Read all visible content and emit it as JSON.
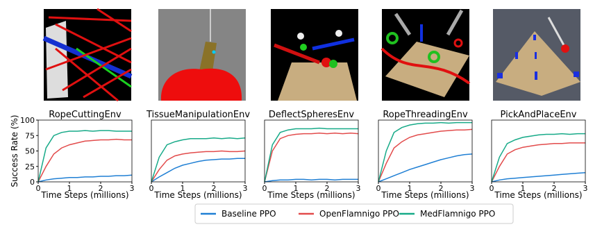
{
  "chart_data": [
    {
      "type": "line",
      "title": "RopeCuttingEnv",
      "xlabel": "Time Steps (millions)",
      "ylabel": "Success Rate (%)",
      "x": [
        0,
        0.25,
        0.5,
        0.75,
        1,
        1.25,
        1.5,
        1.75,
        2,
        2.25,
        2.5,
        2.75,
        3
      ],
      "xlim": [
        0,
        3
      ],
      "xticks": [
        0,
        1,
        2,
        3
      ],
      "ylim": [
        0,
        100
      ],
      "yticks": [
        0,
        25,
        50,
        75,
        100
      ],
      "series": [
        {
          "name": "Baseline PPO",
          "color": "#1f7fd4",
          "values": [
            0,
            3,
            5,
            6,
            7,
            7,
            8,
            8,
            9,
            9,
            10,
            10,
            11
          ]
        },
        {
          "name": "OpenFlamnigo PPO",
          "color": "#e24b4b",
          "values": [
            0,
            25,
            45,
            55,
            60,
            63,
            66,
            67,
            68,
            68,
            69,
            68,
            68
          ]
        },
        {
          "name": "MedFlamnigo PPO",
          "color": "#17aa88",
          "values": [
            0,
            55,
            75,
            80,
            82,
            82,
            83,
            82,
            83,
            83,
            82,
            82,
            82
          ]
        }
      ]
    },
    {
      "type": "line",
      "title": "TissueManipulationEnv",
      "xlabel": "Time Steps (millions)",
      "x": [
        0,
        0.25,
        0.5,
        0.75,
        1,
        1.25,
        1.5,
        1.75,
        2,
        2.25,
        2.5,
        2.75,
        3
      ],
      "xlim": [
        0,
        3
      ],
      "xticks": [
        0,
        1,
        2,
        3
      ],
      "ylim": [
        0,
        100
      ],
      "series": [
        {
          "name": "Baseline PPO",
          "color": "#1f7fd4",
          "values": [
            0,
            8,
            15,
            22,
            27,
            30,
            33,
            35,
            36,
            37,
            37,
            38,
            38
          ]
        },
        {
          "name": "OpenFlamnigo PPO",
          "color": "#e24b4b",
          "values": [
            0,
            20,
            35,
            42,
            45,
            47,
            48,
            49,
            49,
            50,
            49,
            49,
            50
          ]
        },
        {
          "name": "MedFlamnigo PPO",
          "color": "#17aa88",
          "values": [
            0,
            40,
            60,
            65,
            68,
            70,
            70,
            70,
            71,
            70,
            71,
            70,
            71
          ]
        }
      ]
    },
    {
      "type": "line",
      "title": "DeflectSpheresEnv",
      "xlabel": "Time Steps (millions)",
      "x": [
        0,
        0.25,
        0.5,
        0.75,
        1,
        1.25,
        1.5,
        1.75,
        2,
        2.25,
        2.5,
        2.75,
        3
      ],
      "xlim": [
        0,
        3
      ],
      "xticks": [
        0,
        1,
        2,
        3
      ],
      "ylim": [
        0,
        100
      ],
      "series": [
        {
          "name": "Baseline PPO",
          "color": "#1f7fd4",
          "values": [
            0,
            2,
            3,
            3,
            4,
            4,
            3,
            4,
            4,
            3,
            4,
            4,
            4
          ]
        },
        {
          "name": "OpenFlamnigo PPO",
          "color": "#e24b4b",
          "values": [
            0,
            50,
            70,
            75,
            77,
            78,
            78,
            79,
            78,
            79,
            78,
            79,
            78
          ]
        },
        {
          "name": "MedFlamnigo PPO",
          "color": "#17aa88",
          "values": [
            0,
            60,
            80,
            84,
            86,
            86,
            86,
            87,
            86,
            86,
            86,
            86,
            86
          ]
        }
      ]
    },
    {
      "type": "line",
      "title": "RopeThreadingEnv",
      "xlabel": "Time Steps (millions)",
      "x": [
        0,
        0.25,
        0.5,
        0.75,
        1,
        1.25,
        1.5,
        1.75,
        2,
        2.25,
        2.5,
        2.75,
        3
      ],
      "xlim": [
        0,
        3
      ],
      "xticks": [
        0,
        1,
        2,
        3
      ],
      "ylim": [
        0,
        100
      ],
      "series": [
        {
          "name": "Baseline PPO",
          "color": "#1f7fd4",
          "values": [
            0,
            5,
            10,
            15,
            20,
            24,
            28,
            32,
            36,
            39,
            42,
            44,
            45
          ]
        },
        {
          "name": "OpenFlamnigo PPO",
          "color": "#e24b4b",
          "values": [
            0,
            30,
            55,
            65,
            72,
            76,
            78,
            80,
            82,
            83,
            84,
            84,
            85
          ]
        },
        {
          "name": "MedFlamnigo PPO",
          "color": "#17aa88",
          "values": [
            0,
            50,
            80,
            88,
            92,
            94,
            95,
            95,
            96,
            95,
            96,
            96,
            96
          ]
        }
      ]
    },
    {
      "type": "line",
      "title": "PickAndPlaceEnv",
      "xlabel": "Time Steps (millions)",
      "x": [
        0,
        0.25,
        0.5,
        0.75,
        1,
        1.25,
        1.5,
        1.75,
        2,
        2.25,
        2.5,
        2.75,
        3
      ],
      "xlim": [
        0,
        3
      ],
      "xticks": [
        0,
        1,
        2,
        3
      ],
      "ylim": [
        0,
        100
      ],
      "series": [
        {
          "name": "Baseline PPO",
          "color": "#1f7fd4",
          "values": [
            0,
            3,
            5,
            6,
            7,
            8,
            9,
            10,
            11,
            12,
            13,
            14,
            15
          ]
        },
        {
          "name": "OpenFlamnigo PPO",
          "color": "#e24b4b",
          "values": [
            0,
            25,
            45,
            52,
            56,
            58,
            60,
            61,
            62,
            62,
            63,
            63,
            63
          ]
        },
        {
          "name": "MedFlamnigo PPO",
          "color": "#17aa88",
          "values": [
            0,
            40,
            62,
            68,
            72,
            74,
            76,
            77,
            77,
            78,
            77,
            78,
            78
          ]
        }
      ]
    }
  ]
}
